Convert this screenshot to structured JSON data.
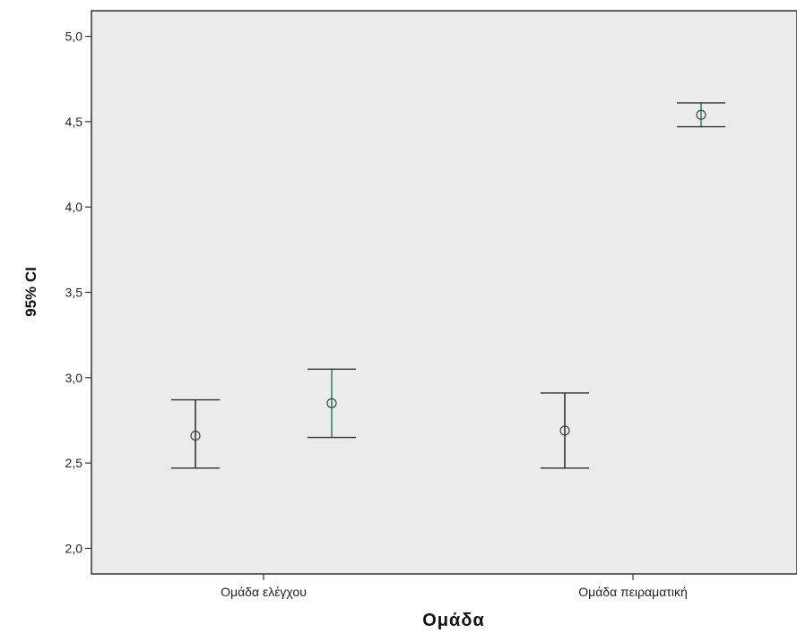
{
  "chart_data": {
    "type": "errorbar",
    "xlabel": "Ομάδα",
    "ylabel": "95% CI",
    "categories": [
      "Ομάδα ελέγχου",
      "Ομάδα πειραματική"
    ],
    "ylim": [
      1.85,
      5.15
    ],
    "yticks": [
      2.0,
      2.5,
      3.0,
      3.5,
      4.0,
      4.5,
      5.0
    ],
    "ytick_labels": [
      "2,0",
      "2,5",
      "3,0",
      "3,5",
      "4,0",
      "4,5",
      "5,0"
    ],
    "series": [
      {
        "color": "#333333",
        "points": [
          {
            "category": "Ομάδα ελέγχου",
            "mean": 2.66,
            "lower": 2.47,
            "upper": 2.87
          },
          {
            "category": "Ομάδα πειραματική",
            "mean": 2.69,
            "lower": 2.47,
            "upper": 2.91
          }
        ]
      },
      {
        "color": "#2e8b6e",
        "points": [
          {
            "category": "Ομάδα ελέγχου",
            "mean": 2.85,
            "lower": 2.65,
            "upper": 3.05
          },
          {
            "category": "Ομάδα πειραματική",
            "mean": 4.54,
            "lower": 4.47,
            "upper": 4.61
          }
        ]
      }
    ],
    "legend": false,
    "grid": false,
    "plot_background": "#ebebeb"
  }
}
